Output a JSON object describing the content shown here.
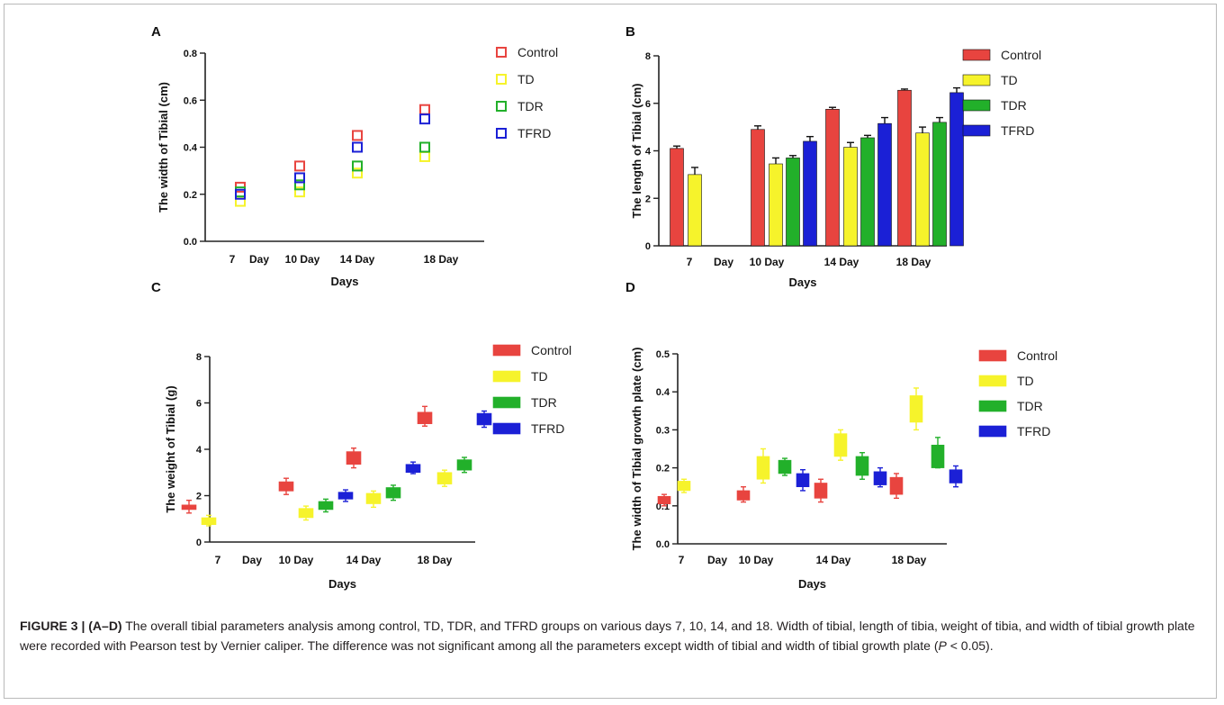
{
  "figure": {
    "caption_label": "FIGURE 3 | (A–D)",
    "caption_text_1": " The overall tibial parameters analysis among control, TD, TDR, and TFRD groups on various days 7, 10, 14, and 18. Width of tibial, length of tibia, weight of tibia, and width of tibial growth plate were recorded with Pearson test by Vernier caliper. The difference was not significant among all the parameters except width of tibial and width of tibial growth plate (",
    "caption_p": "P",
    "caption_text_2": " < 0.05)."
  },
  "colors": {
    "Control": "#e8443f",
    "TD": "#f6f32b",
    "TDR": "#22b02a",
    "TFRD": "#1b20d6",
    "axis": "#222222"
  },
  "chart_data": [
    {
      "panel": "A",
      "type": "scatter",
      "marker": "open-square",
      "xlabel": "Days",
      "ylabel": "The width of Tibial (cm)",
      "categories": [
        "7  Day",
        "10 Day",
        "14 Day",
        "18 Day"
      ],
      "ylim": [
        0,
        0.8
      ],
      "yticks": [
        "0.0",
        "0.2",
        "0.4",
        "0.6",
        "0.8"
      ],
      "ytick_values": [
        0,
        0.2,
        0.4,
        0.6,
        0.8
      ],
      "legend": "top-right",
      "grid": false,
      "series": [
        {
          "name": "Control",
          "values": [
            0.23,
            0.32,
            0.45,
            0.56
          ]
        },
        {
          "name": "TD",
          "values": [
            0.17,
            0.21,
            0.29,
            0.36
          ]
        },
        {
          "name": "TDR",
          "values": [
            0.21,
            0.24,
            0.32,
            0.4
          ]
        },
        {
          "name": "TFRD",
          "values": [
            0.2,
            0.27,
            0.4,
            0.52
          ]
        }
      ]
    },
    {
      "panel": "B",
      "type": "bar",
      "xlabel": "Days",
      "ylabel": "The length of Tibial (cm)",
      "categories": [
        "7   Day",
        "10 Day",
        "14 Day",
        "18 Day"
      ],
      "ylim": [
        0,
        8
      ],
      "yticks": [
        "0",
        "2",
        "4",
        "6",
        "8"
      ],
      "ytick_values": [
        0,
        2,
        4,
        6,
        8
      ],
      "legend": "top-right",
      "grid": false,
      "series": [
        {
          "name": "Control",
          "values": [
            4.1,
            4.9,
            5.75,
            6.55
          ],
          "errors": [
            0.1,
            0.15,
            0.08,
            0.05
          ]
        },
        {
          "name": "TD",
          "values": [
            3.0,
            3.45,
            4.15,
            4.75
          ],
          "errors": [
            0.3,
            0.25,
            0.2,
            0.25
          ]
        },
        {
          "name": "TDR",
          "values": [
            null,
            3.7,
            4.55,
            5.2
          ],
          "errors": [
            null,
            0.1,
            0.1,
            0.2
          ]
        },
        {
          "name": "TFRD",
          "values": [
            null,
            4.4,
            5.15,
            6.45
          ],
          "errors": [
            null,
            0.2,
            0.25,
            0.2
          ]
        }
      ]
    },
    {
      "panel": "C",
      "type": "box",
      "xlabel": "Days",
      "ylabel": "The weight of Tibial (g)",
      "categories": [
        "7   Day",
        "10 Day",
        "14 Day",
        "18 Day"
      ],
      "ylim": [
        0,
        8
      ],
      "yticks": [
        "0",
        "2",
        "4",
        "6",
        "8"
      ],
      "ytick_values": [
        0,
        2,
        4,
        6,
        8
      ],
      "legend": "top-right",
      "grid": false,
      "series": [
        {
          "name": "Control",
          "boxes": [
            [
              1.25,
              1.4,
              1.6,
              1.8
            ],
            [
              2.05,
              2.2,
              2.6,
              2.75
            ],
            [
              3.2,
              3.35,
              3.9,
              4.05
            ],
            [
              5.0,
              5.1,
              5.6,
              5.85
            ]
          ]
        },
        {
          "name": "TD",
          "boxes": [
            [
              0.7,
              0.75,
              1.05,
              1.15
            ],
            [
              0.95,
              1.05,
              1.45,
              1.55
            ],
            [
              1.5,
              1.65,
              2.1,
              2.2
            ],
            [
              2.4,
              2.5,
              3.0,
              3.1
            ]
          ]
        },
        {
          "name": "TDR",
          "boxes": [
            null,
            [
              1.3,
              1.4,
              1.75,
              1.85
            ],
            [
              1.8,
              1.9,
              2.35,
              2.45
            ],
            [
              3.0,
              3.1,
              3.55,
              3.65
            ]
          ]
        },
        {
          "name": "TFRD",
          "boxes": [
            null,
            [
              1.75,
              1.85,
              2.15,
              2.25
            ],
            [
              2.95,
              3.0,
              3.35,
              3.45
            ],
            [
              4.95,
              5.05,
              5.55,
              5.65
            ]
          ]
        }
      ]
    },
    {
      "panel": "D",
      "type": "box",
      "xlabel": "Days",
      "ylabel": "The width of Tibial growth plate (cm)",
      "categories": [
        "7   Day",
        "10 Day",
        "14 Day",
        "18 Day"
      ],
      "ylim": [
        0,
        0.5
      ],
      "yticks": [
        "0.0",
        "0.1",
        "0.2",
        "0.3",
        "0.4",
        "0.5"
      ],
      "ytick_values": [
        0,
        0.1,
        0.2,
        0.3,
        0.4,
        0.5
      ],
      "legend": "top-right",
      "grid": false,
      "series": [
        {
          "name": "Control",
          "boxes": [
            [
              0.1,
              0.105,
              0.125,
              0.13
            ],
            [
              0.11,
              0.115,
              0.14,
              0.15
            ],
            [
              0.11,
              0.12,
              0.16,
              0.17
            ],
            [
              0.12,
              0.13,
              0.175,
              0.185
            ]
          ]
        },
        {
          "name": "TD",
          "boxes": [
            [
              0.135,
              0.14,
              0.165,
              0.17
            ],
            [
              0.16,
              0.17,
              0.23,
              0.25
            ],
            [
              0.22,
              0.23,
              0.29,
              0.3
            ],
            [
              0.3,
              0.32,
              0.39,
              0.41
            ]
          ]
        },
        {
          "name": "TDR",
          "boxes": [
            null,
            [
              0.18,
              0.185,
              0.22,
              0.225
            ],
            [
              0.17,
              0.18,
              0.23,
              0.24
            ],
            [
              0.2,
              0.2,
              0.26,
              0.28
            ]
          ]
        },
        {
          "name": "TFRD",
          "boxes": [
            null,
            [
              0.14,
              0.15,
              0.185,
              0.195
            ],
            [
              0.15,
              0.155,
              0.19,
              0.2
            ],
            [
              0.15,
              0.16,
              0.195,
              0.205
            ]
          ]
        }
      ]
    }
  ]
}
